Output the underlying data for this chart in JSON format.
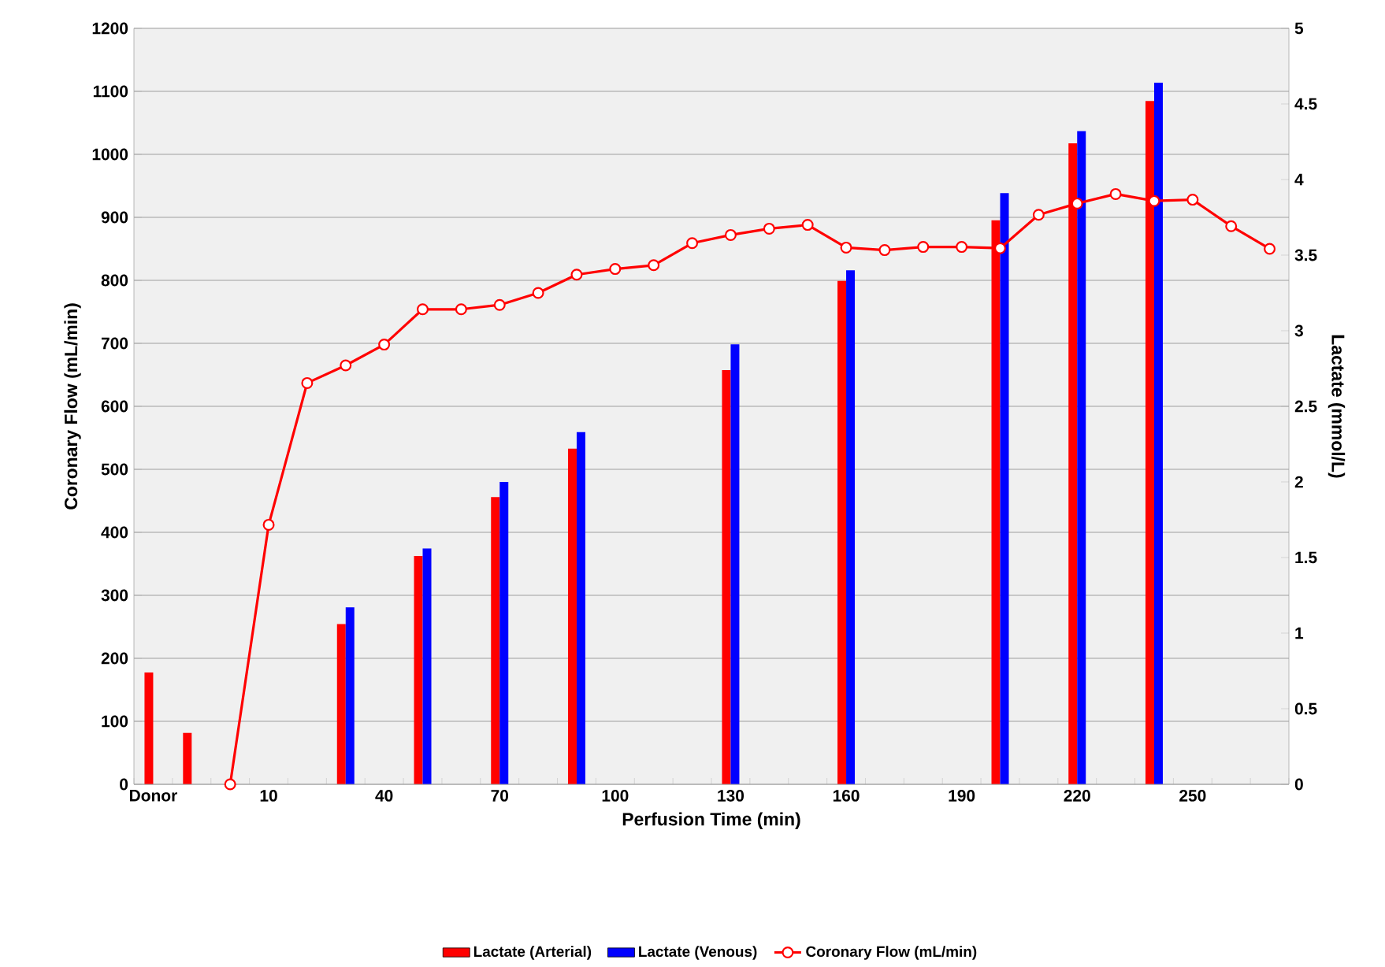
{
  "chart_data": {
    "type": "bar",
    "xlabel": "Perfusion Time (min)",
    "ylabel": "Coronary Flow (mL/min)",
    "y2label": "Lactate (mmol/L)",
    "categories": [
      "Donor",
      null,
      null,
      "10",
      null,
      null,
      "40",
      null,
      null,
      "70",
      null,
      null,
      "100",
      null,
      null,
      "130",
      null,
      null,
      "160",
      null,
      null,
      "190",
      null,
      null,
      "220",
      null,
      null,
      "250",
      null,
      null
    ],
    "series": [
      {
        "name": "Lactate (Arterial)",
        "axis": "y2",
        "color": "#ff0000",
        "values": [
          0.74,
          0.34,
          null,
          null,
          null,
          1.06,
          null,
          1.51,
          null,
          1.9,
          null,
          2.22,
          null,
          null,
          null,
          2.74,
          null,
          null,
          3.33,
          null,
          null,
          null,
          3.73,
          null,
          4.24,
          null,
          4.52,
          null,
          null,
          null
        ]
      },
      {
        "name": "Lactate (Venous)",
        "axis": "y2",
        "color": "#0000ff",
        "values": [
          null,
          null,
          null,
          null,
          null,
          1.17,
          null,
          1.56,
          null,
          2.0,
          null,
          2.33,
          null,
          null,
          null,
          2.91,
          null,
          null,
          3.4,
          null,
          null,
          null,
          3.91,
          null,
          4.32,
          null,
          4.64,
          null,
          null,
          null
        ]
      },
      {
        "name": "Coronary Flow (mL/min)",
        "type": "line",
        "axis": "y",
        "color": "#ff0000",
        "values": [
          null,
          null,
          0,
          412,
          637,
          665,
          698,
          754,
          754,
          761,
          780,
          809,
          818,
          824,
          859,
          872,
          882,
          888,
          852,
          848,
          853,
          853,
          851,
          904,
          922,
          937,
          926,
          928,
          886,
          850
        ]
      }
    ],
    "ylim": [
      0,
      1200
    ],
    "yticks": [
      0,
      100,
      200,
      300,
      400,
      500,
      600,
      700,
      800,
      900,
      1000,
      1100,
      1200
    ],
    "y2lim": [
      0,
      5
    ],
    "y2ticks": [
      0,
      0.5,
      1,
      1.5,
      2,
      2.5,
      3,
      3.5,
      4,
      4.5,
      5
    ],
    "grid": "y",
    "legend": "bottom",
    "marker": "circle",
    "line_style": "solid"
  }
}
